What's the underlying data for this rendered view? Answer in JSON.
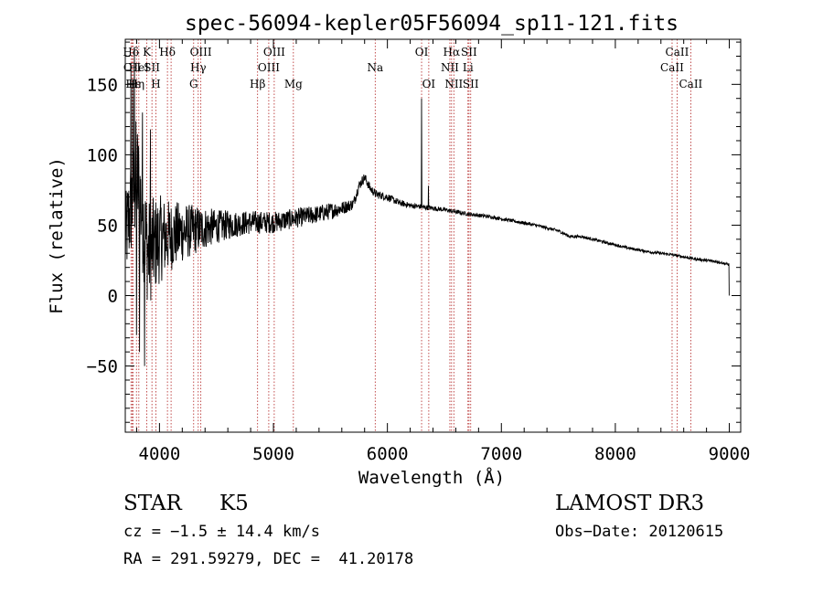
{
  "chart_data": {
    "type": "line",
    "title": "spec-56094-kepler05F56094_sp11-121.fits",
    "xlabel": "Wavelength (Å)",
    "ylabel": "Flux (relative)",
    "xlim": [
      3700,
      9100
    ],
    "ylim": [
      -97,
      182
    ],
    "xticks": [
      {
        "value": 4000,
        "label": "4000"
      },
      {
        "value": 5000,
        "label": "5000"
      },
      {
        "value": 6000,
        "label": "6000"
      },
      {
        "value": 7000,
        "label": "7000"
      },
      {
        "value": 8000,
        "label": "8000"
      },
      {
        "value": 9000,
        "label": "9000"
      }
    ],
    "yticks": [
      {
        "value": -50,
        "label": "−50"
      },
      {
        "value": 0,
        "label": "0"
      },
      {
        "value": 50,
        "label": "50"
      },
      {
        "value": 100,
        "label": "100"
      },
      {
        "value": 150,
        "label": "150"
      }
    ],
    "series": [
      {
        "name": "flux",
        "anchors": [
          [
            3700,
            40
          ],
          [
            3800,
            85
          ],
          [
            3900,
            30
          ],
          [
            4000,
            40
          ],
          [
            4200,
            45
          ],
          [
            4400,
            48
          ],
          [
            4600,
            50
          ],
          [
            4800,
            52
          ],
          [
            5000,
            52
          ],
          [
            5200,
            55
          ],
          [
            5400,
            58
          ],
          [
            5600,
            62
          ],
          [
            5700,
            65
          ],
          [
            5750,
            78
          ],
          [
            5800,
            84
          ],
          [
            5850,
            76
          ],
          [
            5900,
            72
          ],
          [
            6000,
            70
          ],
          [
            6100,
            66
          ],
          [
            6200,
            64
          ],
          [
            6300,
            63
          ],
          [
            6500,
            61
          ],
          [
            6700,
            58
          ],
          [
            6900,
            56
          ],
          [
            7100,
            53
          ],
          [
            7300,
            50
          ],
          [
            7500,
            46
          ],
          [
            7600,
            42
          ],
          [
            7700,
            42
          ],
          [
            7900,
            38
          ],
          [
            8100,
            34
          ],
          [
            8300,
            31
          ],
          [
            8500,
            29
          ],
          [
            8700,
            26
          ],
          [
            8900,
            24
          ],
          [
            9000,
            22
          ]
        ],
        "noise_anchors": [
          [
            3700,
            30
          ],
          [
            3800,
            45
          ],
          [
            3950,
            35
          ],
          [
            4100,
            25
          ],
          [
            4300,
            18
          ],
          [
            4500,
            12
          ],
          [
            4700,
            9
          ],
          [
            4900,
            8
          ],
          [
            5200,
            7
          ],
          [
            5500,
            6
          ],
          [
            5700,
            4
          ],
          [
            5900,
            3
          ],
          [
            6200,
            2
          ],
          [
            6600,
            1.5
          ],
          [
            7000,
            1.2
          ],
          [
            8000,
            1
          ],
          [
            9000,
            1
          ]
        ],
        "spikes": [
          {
            "x": 3750,
            "y": 160
          },
          {
            "x": 3765,
            "y": 152
          },
          {
            "x": 3780,
            "y": 175
          },
          {
            "x": 3800,
            "y": -28
          },
          {
            "x": 3825,
            "y": -40
          },
          {
            "x": 3850,
            "y": 130
          },
          {
            "x": 3870,
            "y": -50
          },
          {
            "x": 3920,
            "y": 118
          },
          {
            "x": 6300,
            "y": 140
          },
          {
            "x": 6360,
            "y": 78
          },
          {
            "x": 9000,
            "y": 0
          }
        ]
      }
    ],
    "lines": [
      {
        "x": 3750,
        "label": "Hδ",
        "row": 1
      },
      {
        "x": 3760,
        "label": "OII",
        "row": 2
      },
      {
        "x": 3770,
        "label": "Hε",
        "row": 3
      },
      {
        "x": 3798,
        "label": "Hη",
        "row": 3
      },
      {
        "x": 3819,
        "label": "HeI",
        "row": 2
      },
      {
        "x": 3889,
        "label": "K",
        "row": 1
      },
      {
        "x": 3934,
        "label": "SII",
        "row": 2
      },
      {
        "x": 3969,
        "label": "H",
        "row": 3
      },
      {
        "x": 4070,
        "label": "Hδ",
        "row": 1
      },
      {
        "x": 4102,
        "label": "",
        "row": 0
      },
      {
        "x": 4300,
        "label": "G",
        "row": 3
      },
      {
        "x": 4340,
        "label": "Hγ",
        "row": 2
      },
      {
        "x": 4363,
        "label": "OIII",
        "row": 1
      },
      {
        "x": 4861,
        "label": "Hβ",
        "row": 3
      },
      {
        "x": 4959,
        "label": "OIII",
        "row": 2
      },
      {
        "x": 5007,
        "label": "OIII",
        "row": 1
      },
      {
        "x": 5175,
        "label": "Mg",
        "row": 3
      },
      {
        "x": 5893,
        "label": "Na",
        "row": 2
      },
      {
        "x": 6300,
        "label": "OI",
        "row": 1
      },
      {
        "x": 6363,
        "label": "OI",
        "row": 3
      },
      {
        "x": 6548,
        "label": "NII",
        "row": 2
      },
      {
        "x": 6563,
        "label": "Hα",
        "row": 1
      },
      {
        "x": 6583,
        "label": "NII",
        "row": 3
      },
      {
        "x": 6707,
        "label": "Li",
        "row": 2
      },
      {
        "x": 6716,
        "label": "SII",
        "row": 1
      },
      {
        "x": 6731,
        "label": "SII",
        "row": 3
      },
      {
        "x": 8498,
        "label": "CaII",
        "row": 2
      },
      {
        "x": 8542,
        "label": "CaII",
        "row": 1
      },
      {
        "x": 8662,
        "label": "CaII",
        "row": 3
      }
    ]
  },
  "info": {
    "class": "STAR",
    "subclass": "K5",
    "survey": "LAMOST DR3",
    "redshift": "cz = −1.5 ± 14.4 km/s",
    "obsdate": "Obs−Date: 20120615",
    "coords": "RA = 291.59279, DEC =  41.20178"
  },
  "colors": {
    "line": "#000000",
    "marker": "#b22222",
    "text": "#000000"
  }
}
